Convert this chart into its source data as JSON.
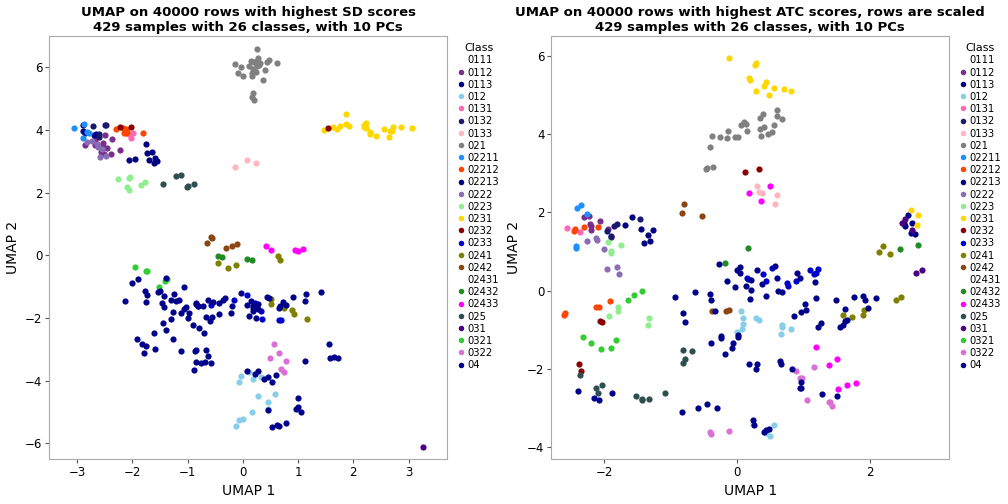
{
  "title1": "UMAP on 40000 rows with highest SD scores\n429 samples with 26 classes, with 10 PCs",
  "title2": "UMAP on 40000 rows with highest ATC scores, rows are scaled\n429 samples with 26 classes, with 10 PCs",
  "xlabel": "UMAP 1",
  "ylabel": "UMAP 2",
  "classes": [
    "0111",
    "0112",
    "0113",
    "012",
    "0131",
    "0132",
    "0133",
    "021",
    "02211",
    "02212",
    "02213",
    "0222",
    "0223",
    "0231",
    "0232",
    "0233",
    "0241",
    "0242",
    "02431",
    "02432",
    "02433",
    "025",
    "031",
    "0321",
    "0322",
    "04"
  ],
  "colors": {
    "0111": "#FFFFFF",
    "0112": "#7B2D8B",
    "0113": "#00008B",
    "012": "#87CEEB",
    "0131": "#FF69B4",
    "0132": "#191970",
    "0133": "#FFB6C1",
    "021": "#808080",
    "02211": "#1E90FF",
    "02212": "#FF4500",
    "02213": "#000080",
    "0222": "#8B6DB5",
    "0223": "#90EE90",
    "0231": "#FFD700",
    "0232": "#8B0000",
    "0233": "#0000CD",
    "0241": "#808000",
    "0242": "#8B4513",
    "02431": "#FFFFFF",
    "02432": "#228B22",
    "02433": "#FF00FF",
    "025": "#2F4F4F",
    "031": "#4B0082",
    "0321": "#32CD32",
    "0322": "#DA70D6",
    "04": "#00008B"
  },
  "xlim1": [
    -3.5,
    3.7
  ],
  "ylim1": [
    -6.5,
    7.0
  ],
  "xlim2": [
    -2.8,
    3.2
  ],
  "ylim2": [
    -4.3,
    6.5
  ],
  "xticks1": [
    -3,
    -2,
    -1,
    0,
    1,
    2,
    3
  ],
  "yticks1": [
    -6,
    -4,
    -2,
    0,
    2,
    4,
    6
  ],
  "xticks2": [
    -2,
    0,
    2
  ],
  "yticks2": [
    -4,
    -2,
    0,
    2,
    4,
    6
  ],
  "marker_size": 20,
  "background": "#FFFFFF"
}
